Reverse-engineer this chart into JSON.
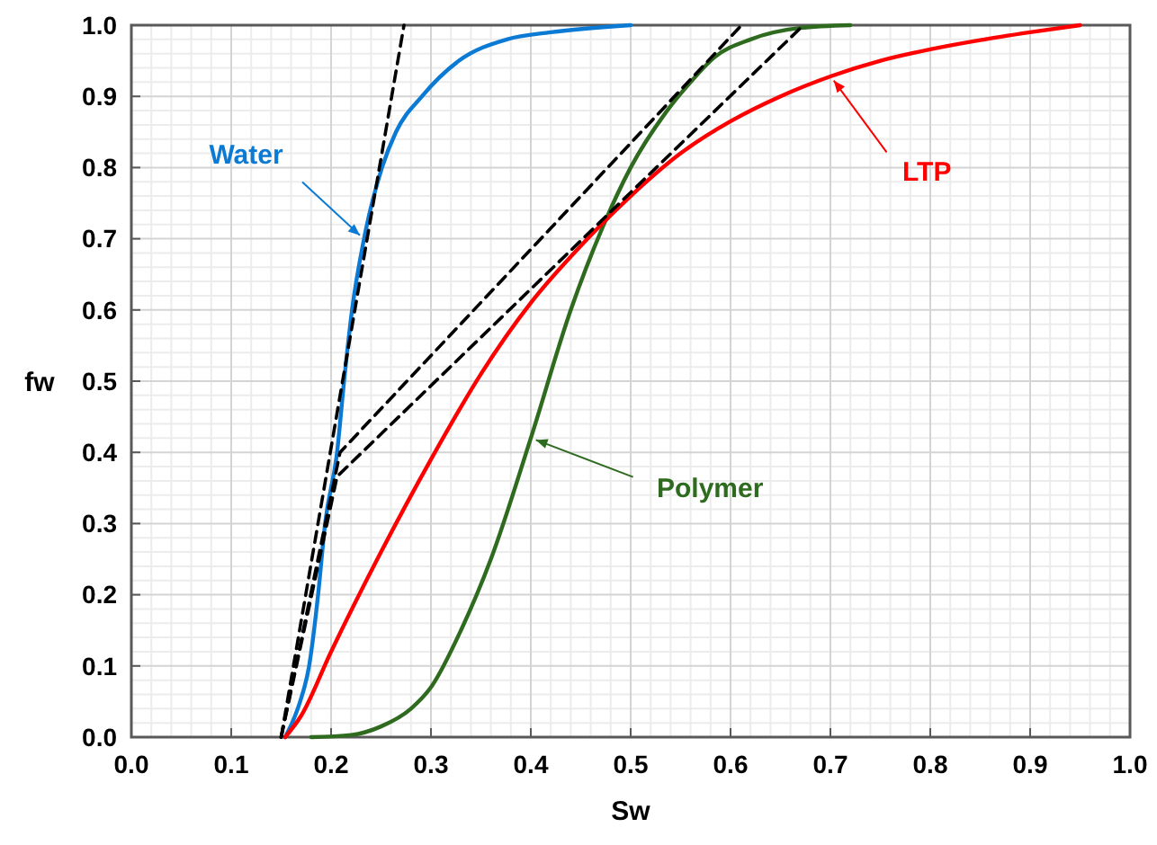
{
  "chart_data": {
    "type": "line",
    "xlabel": "Sw",
    "ylabel": "fw",
    "xlim": [
      0,
      1
    ],
    "ylim": [
      0,
      1
    ],
    "xticks": [
      {
        "value": 0,
        "label": "0.0"
      },
      0.1,
      0.2,
      0.3,
      0.4,
      0.5,
      0.6,
      0.7,
      0.8,
      0.9,
      {
        "value": 1,
        "label": "1.0"
      }
    ],
    "yticks": [
      {
        "value": 0,
        "label": "0.0"
      },
      0.1,
      0.2,
      0.3,
      0.4,
      0.5,
      0.6,
      0.7,
      0.8,
      0.9,
      {
        "value": 1,
        "label": "1.0"
      }
    ],
    "grid": true,
    "marker": "none",
    "series": [
      {
        "name": "Water",
        "color": "#0a7ad4",
        "x": [
          0.154,
          0.161,
          0.169,
          0.178,
          0.187,
          0.194,
          0.206,
          0.213,
          0.221,
          0.233,
          0.251,
          0.265,
          0.291,
          0.328,
          0.376,
          0.42,
          0.5
        ],
        "values": [
          0,
          0.02,
          0.05,
          0.1,
          0.2,
          0.3,
          0.4,
          0.5,
          0.6,
          0.7,
          0.8,
          0.85,
          0.9,
          0.95,
          0.98,
          0.99,
          1.0
        ]
      },
      {
        "name": "Polymer",
        "color": "#2e6b1f",
        "x": [
          0.18,
          0.22,
          0.25,
          0.28,
          0.3,
          0.33,
          0.36,
          0.4,
          0.44,
          0.474,
          0.5,
          0.535,
          0.56,
          0.584,
          0.62,
          0.669,
          0.72
        ],
        "values": [
          0,
          0.003,
          0.015,
          0.04,
          0.07,
          0.15,
          0.25,
          0.42,
          0.6,
          0.723,
          0.8,
          0.877,
          0.92,
          0.955,
          0.98,
          0.996,
          1.0
        ]
      },
      {
        "name": "LTP",
        "color": "#ff0000",
        "x": [
          0.154,
          0.17,
          0.2,
          0.25,
          0.3,
          0.35,
          0.4,
          0.45,
          0.5,
          0.55,
          0.6,
          0.65,
          0.7,
          0.75,
          0.8,
          0.85,
          0.9,
          0.95
        ],
        "values": [
          0,
          0.03,
          0.12,
          0.26,
          0.39,
          0.51,
          0.61,
          0.69,
          0.76,
          0.82,
          0.865,
          0.9,
          0.928,
          0.95,
          0.966,
          0.979,
          0.99,
          1.0
        ]
      },
      {
        "color": "#000000",
        "line_style": "dashed",
        "x": [
          0.15,
          0.273
        ],
        "values": [
          0,
          1.0
        ]
      },
      {
        "color": "#000000",
        "line_style": "dashed",
        "x": [
          0.15,
          0.209,
          0.611
        ],
        "values": [
          0,
          0.4,
          1.0
        ]
      },
      {
        "color": "#000000",
        "line_style": "dashed",
        "x": [
          0.15,
          0.206,
          0.673
        ],
        "values": [
          0,
          0.366,
          1.0
        ]
      }
    ]
  }
}
